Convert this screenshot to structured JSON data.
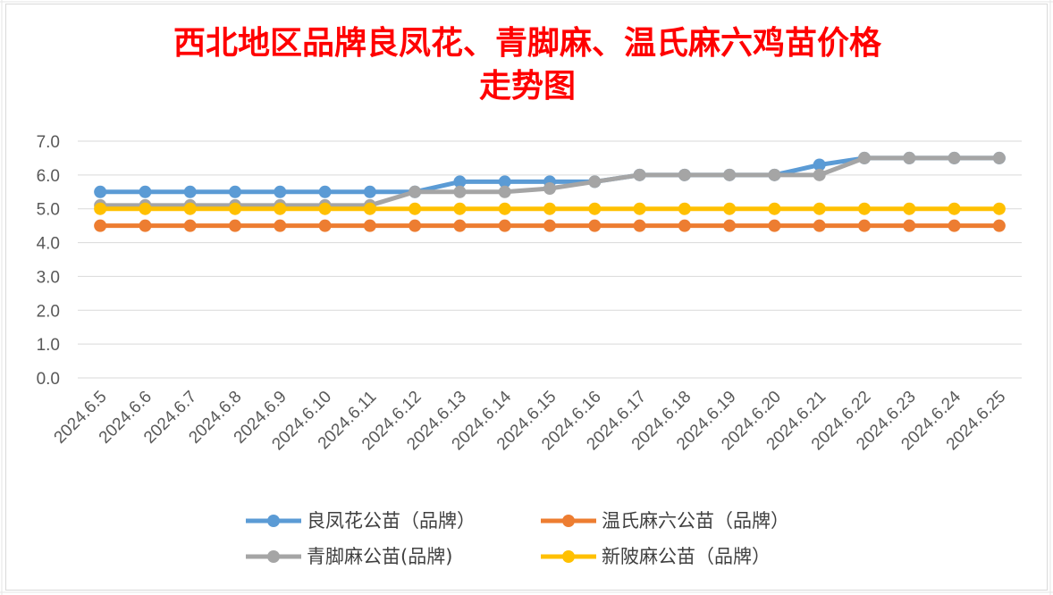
{
  "chart_data": {
    "type": "line",
    "title_lines": [
      "西北地区品牌良凤花、青脚麻、温氏麻六鸡苗价格",
      "走势图"
    ],
    "categories": [
      "2024.6.5",
      "2024.6.6",
      "2024.6.7",
      "2024.6.8",
      "2024.6.9",
      "2024.6.10",
      "2024.6.11",
      "2024.6.12",
      "2024.6.13",
      "2024.6.14",
      "2024.6.15",
      "2024.6.16",
      "2024.6.17",
      "2024.6.18",
      "2024.6.19",
      "2024.6.20",
      "2024.6.21",
      "2024.6.22",
      "2024.6.23",
      "2024.6.24",
      "2024.6.25"
    ],
    "ylim": [
      0,
      7
    ],
    "yticks": [
      "0.0",
      "1.0",
      "2.0",
      "3.0",
      "4.0",
      "5.0",
      "6.0",
      "7.0"
    ],
    "grid": true,
    "legend_position": "bottom",
    "series": [
      {
        "name": "良凤花公苗（品牌）",
        "color": "#5b9bd5",
        "values": [
          5.5,
          5.5,
          5.5,
          5.5,
          5.5,
          5.5,
          5.5,
          5.5,
          5.8,
          5.8,
          5.8,
          5.8,
          6.0,
          6.0,
          6.0,
          6.0,
          6.3,
          6.5,
          6.5,
          6.5,
          6.5
        ]
      },
      {
        "name": "温氏麻六公苗（品牌）",
        "color": "#ed7d31",
        "values": [
          4.5,
          4.5,
          4.5,
          4.5,
          4.5,
          4.5,
          4.5,
          4.5,
          4.5,
          4.5,
          4.5,
          4.5,
          4.5,
          4.5,
          4.5,
          4.5,
          4.5,
          4.5,
          4.5,
          4.5,
          4.5
        ]
      },
      {
        "name": "青脚麻公苗(品牌)",
        "color": "#a5a5a5",
        "values": [
          5.1,
          5.1,
          5.1,
          5.1,
          5.1,
          5.1,
          5.1,
          5.5,
          5.5,
          5.5,
          5.6,
          5.8,
          6.0,
          6.0,
          6.0,
          6.0,
          6.0,
          6.5,
          6.5,
          6.5,
          6.5
        ]
      },
      {
        "name": "新陂麻公苗（品牌）",
        "color": "#ffc000",
        "values": [
          5.0,
          5.0,
          5.0,
          5.0,
          5.0,
          5.0,
          5.0,
          5.0,
          5.0,
          5.0,
          5.0,
          5.0,
          5.0,
          5.0,
          5.0,
          5.0,
          5.0,
          5.0,
          5.0,
          5.0,
          5.0
        ]
      }
    ]
  }
}
